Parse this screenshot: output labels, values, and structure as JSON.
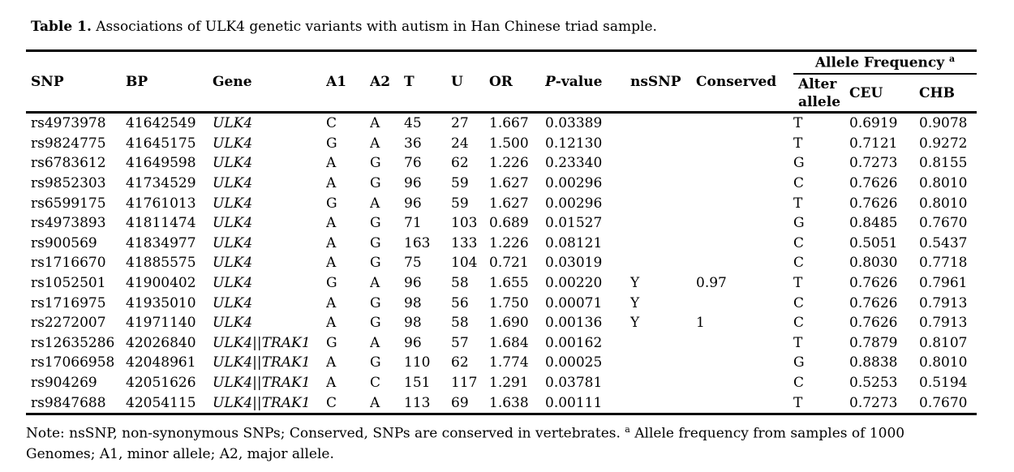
{
  "page": {
    "background_color": "#ffffff",
    "text_color": "#000000",
    "rule_color": "#000000"
  },
  "title": {
    "label": "Table 1.",
    "text": "Associations of ULK4 genetic variants with autism in Han Chinese triad sample."
  },
  "table": {
    "span_header": {
      "label": "Allele Frequency",
      "superscript": "a"
    },
    "columns": [
      "SNP",
      "BP",
      "Gene",
      "A1",
      "A2",
      "T",
      "U",
      "OR",
      "P-value",
      "nsSNP",
      "Conserved",
      "Alter allele",
      "CEU",
      "CHB"
    ],
    "column_keys": [
      "snp",
      "bp",
      "gene",
      "a1",
      "a2",
      "t",
      "u",
      "or",
      "p-value",
      "nssnp",
      "conserved",
      "alter-allele",
      "ceu",
      "chb"
    ],
    "p_value_header": {
      "italic_part": "P",
      "rest": "-value"
    },
    "rows": [
      [
        "rs4973978",
        "41642549",
        "ULK4",
        "C",
        "A",
        "45",
        "27",
        "1.667",
        "0.03389",
        "",
        "",
        "T",
        "0.6919",
        "0.9078"
      ],
      [
        "rs9824775",
        "41645175",
        "ULK4",
        "G",
        "A",
        "36",
        "24",
        "1.500",
        "0.12130",
        "",
        "",
        "T",
        "0.7121",
        "0.9272"
      ],
      [
        "rs6783612",
        "41649598",
        "ULK4",
        "A",
        "G",
        "76",
        "62",
        "1.226",
        "0.23340",
        "",
        "",
        "G",
        "0.7273",
        "0.8155"
      ],
      [
        "rs9852303",
        "41734529",
        "ULK4",
        "A",
        "G",
        "96",
        "59",
        "1.627",
        "0.00296",
        "",
        "",
        "C",
        "0.7626",
        "0.8010"
      ],
      [
        "rs6599175",
        "41761013",
        "ULK4",
        "G",
        "A",
        "96",
        "59",
        "1.627",
        "0.00296",
        "",
        "",
        "T",
        "0.7626",
        "0.8010"
      ],
      [
        "rs4973893",
        "41811474",
        "ULK4",
        "A",
        "G",
        "71",
        "103",
        "0.689",
        "0.01527",
        "",
        "",
        "G",
        "0.8485",
        "0.7670"
      ],
      [
        "rs900569",
        "41834977",
        "ULK4",
        "A",
        "G",
        "163",
        "133",
        "1.226",
        "0.08121",
        "",
        "",
        "C",
        "0.5051",
        "0.5437"
      ],
      [
        "rs1716670",
        "41885575",
        "ULK4",
        "A",
        "G",
        "75",
        "104",
        "0.721",
        "0.03019",
        "",
        "",
        "C",
        "0.8030",
        "0.7718"
      ],
      [
        "rs1052501",
        "41900402",
        "ULK4",
        "G",
        "A",
        "96",
        "58",
        "1.655",
        "0.00220",
        "Y",
        "0.97",
        "T",
        "0.7626",
        "0.7961"
      ],
      [
        "rs1716975",
        "41935010",
        "ULK4",
        "A",
        "G",
        "98",
        "56",
        "1.750",
        "0.00071",
        "Y",
        "",
        "C",
        "0.7626",
        "0.7913"
      ],
      [
        "rs2272007",
        "41971140",
        "ULK4",
        "A",
        "G",
        "98",
        "58",
        "1.690",
        "0.00136",
        "Y",
        "1",
        "C",
        "0.7626",
        "0.7913"
      ],
      [
        "rs12635286",
        "42026840",
        "ULK4||TRAK1",
        "G",
        "A",
        "96",
        "57",
        "1.684",
        "0.00162",
        "",
        "",
        "T",
        "0.7879",
        "0.8107"
      ],
      [
        "rs17066958",
        "42048961",
        "ULK4||TRAK1",
        "A",
        "G",
        "110",
        "62",
        "1.774",
        "0.00025",
        "",
        "",
        "G",
        "0.8838",
        "0.8010"
      ],
      [
        "rs904269",
        "42051626",
        "ULK4||TRAK1",
        "A",
        "C",
        "151",
        "117",
        "1.291",
        "0.03781",
        "",
        "",
        "C",
        "0.5253",
        "0.5194"
      ],
      [
        "rs9847688",
        "42054115",
        "ULK4||TRAK1",
        "C",
        "A",
        "113",
        "69",
        "1.638",
        "0.00111",
        "",
        "",
        "T",
        "0.7273",
        "0.7670"
      ]
    ]
  },
  "note": {
    "before_sup": "Note: nsSNP, non-synonymous SNPs; Conserved, SNPs are conserved in vertebrates.",
    "superscript": "a",
    "after_sup": "Allele frequency from samples of 1000 Genomes; A1, minor allele; A2, major allele."
  }
}
